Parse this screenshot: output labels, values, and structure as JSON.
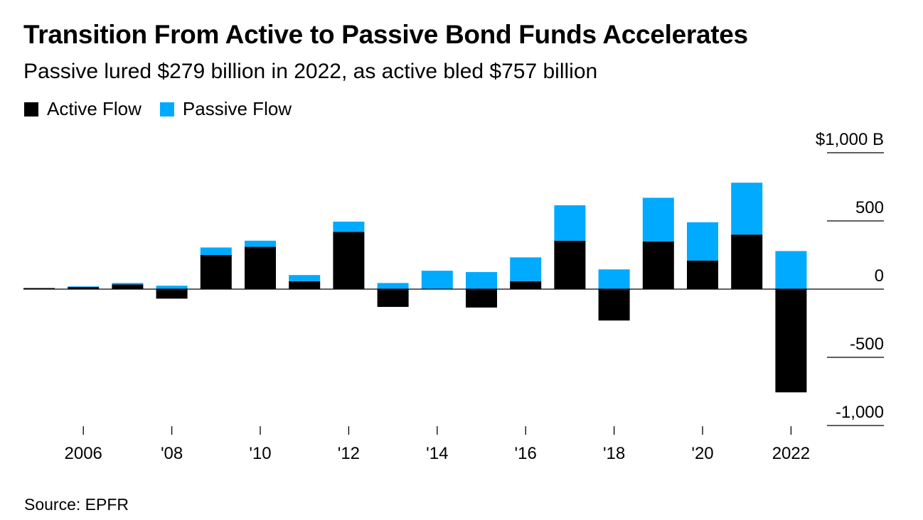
{
  "title": "Transition From Active to Passive Bond Funds Accelerates",
  "subtitle": "Passive lured $279 billion in 2022, as active bled $757 billion",
  "source": "Source: EPFR",
  "colors": {
    "active": "#000000",
    "passive": "#00aaff",
    "axis": "#000000"
  },
  "chart_data": {
    "type": "bar",
    "stacked": true,
    "title": "Transition From Active to Passive Bond Funds Accelerates",
    "subtitle": "Passive lured $279 billion in 2022, as active bled $757 billion",
    "categories": [
      "2005",
      "2006",
      "2007",
      "2008",
      "2009",
      "2010",
      "2011",
      "2012",
      "2013",
      "2014",
      "2015",
      "2016",
      "2017",
      "2018",
      "2019",
      "2020",
      "2021",
      "2022"
    ],
    "series": [
      {
        "name": "Active Flow",
        "color": "#000000",
        "values": [
          8,
          15,
          35,
          -70,
          250,
          310,
          58,
          420,
          -130,
          0,
          -135,
          58,
          355,
          -230,
          350,
          210,
          400,
          -757
        ]
      },
      {
        "name": "Passive Flow",
        "color": "#00aaff",
        "values": [
          0,
          5,
          10,
          25,
          55,
          45,
          45,
          75,
          45,
          135,
          125,
          175,
          260,
          145,
          320,
          280,
          380,
          279
        ]
      }
    ],
    "ylim": [
      -1000,
      1000
    ],
    "y_ticks": [
      {
        "value": 1000,
        "label": "$1,000 B"
      },
      {
        "value": 500,
        "label": "500"
      },
      {
        "value": 0,
        "label": "0"
      },
      {
        "value": -500,
        "label": "-500"
      },
      {
        "value": -1000,
        "label": "-1,000"
      }
    ],
    "x_ticks": [
      {
        "category": "2006",
        "label": "2006"
      },
      {
        "category": "2008",
        "label": "'08"
      },
      {
        "category": "2010",
        "label": "'10"
      },
      {
        "category": "2012",
        "label": "'12"
      },
      {
        "category": "2014",
        "label": "'14"
      },
      {
        "category": "2016",
        "label": "'16"
      },
      {
        "category": "2018",
        "label": "'18"
      },
      {
        "category": "2020",
        "label": "'20"
      },
      {
        "category": "2022",
        "label": "2022"
      }
    ],
    "legend": [
      "Active Flow",
      "Passive Flow"
    ],
    "legend_position": "top-left",
    "y_axis_side": "right",
    "grid": false,
    "source": "Source: EPFR"
  }
}
